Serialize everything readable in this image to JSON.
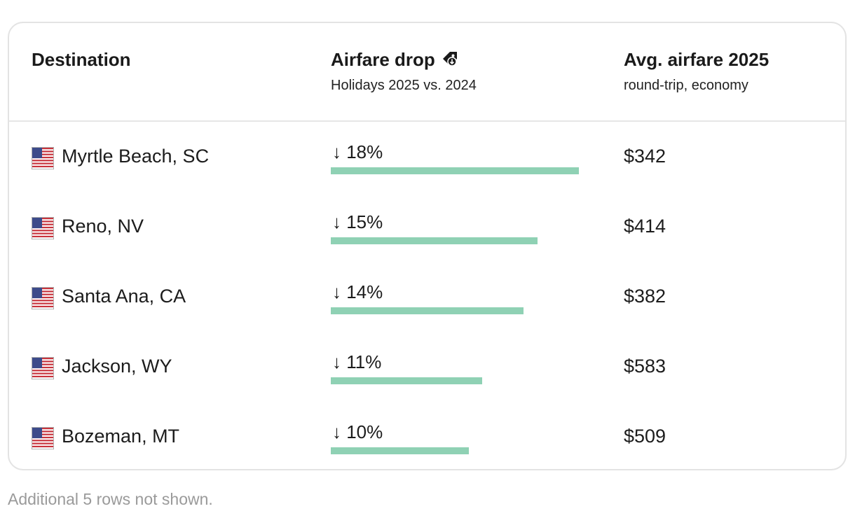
{
  "header": {
    "destination": "Destination",
    "airfare_drop": "Airfare drop",
    "airfare_drop_sub": "Holidays 2025 vs. 2024",
    "avg_airfare": "Avg. airfare 2025",
    "avg_airfare_sub": "round-trip, economy",
    "tag_icon": "price-tag-down-icon"
  },
  "chart_data": {
    "type": "table",
    "columns": [
      "Destination",
      "Airfare drop",
      "Avg. airfare 2025"
    ],
    "bar_max_percent": 18,
    "rows": [
      {
        "destination": "Myrtle Beach, SC",
        "drop_percent": 18,
        "drop_label": "↓ 18%",
        "avg_fare": "$342",
        "flag": "us-flag-icon"
      },
      {
        "destination": "Reno, NV",
        "drop_percent": 15,
        "drop_label": "↓ 15%",
        "avg_fare": "$414",
        "flag": "us-flag-icon"
      },
      {
        "destination": "Santa Ana, CA",
        "drop_percent": 14,
        "drop_label": "↓ 14%",
        "avg_fare": "$382",
        "flag": "us-flag-icon"
      },
      {
        "destination": "Jackson, WY",
        "drop_percent": 11,
        "drop_label": "↓ 11%",
        "avg_fare": "$583",
        "flag": "us-flag-icon"
      },
      {
        "destination": "Bozeman, MT",
        "drop_percent": 10,
        "drop_label": "↓ 10%",
        "avg_fare": "$509",
        "flag": "us-flag-icon"
      }
    ],
    "bar_color": "#8fd1b4"
  },
  "footnote": "Additional 5 rows not shown."
}
